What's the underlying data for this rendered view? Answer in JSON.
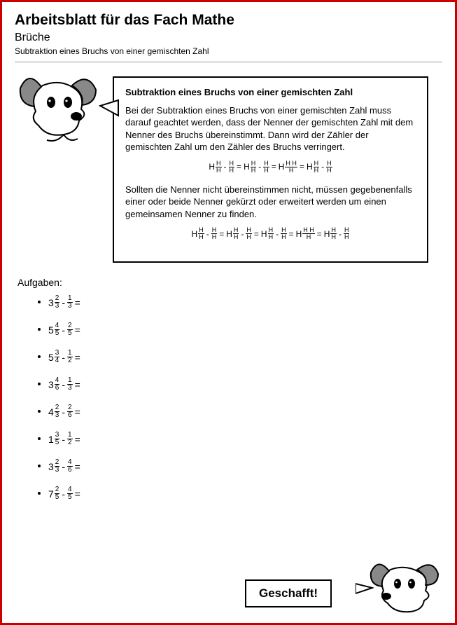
{
  "colors": {
    "border": "#cc0000",
    "bg": "#ffffff",
    "text": "#000000",
    "rule": "#999999"
  },
  "header": {
    "title": "Arbeitsblatt für das Fach Mathe",
    "subtitle": "Brüche",
    "subsub": "Subtraktion eines Bruchs von einer gemischten Zahl"
  },
  "box": {
    "title": "Subtraktion eines Bruchs von einer gemischten Zahl",
    "p1": "Bei der Subtraktion eines Bruchs von einer gemischten Zahl muss darauf geachtet werden, dass der Nenner der gemischten Zahl mit dem Nenner des Bruchs übereinstimmt. Dann wird der Zähler der gemischten Zahl um den Zähler des Bruchs verringert.",
    "eq1": [
      {
        "t": "mix",
        "w": "H",
        "n": "H",
        "d": "H"
      },
      {
        "t": "op",
        "v": "-"
      },
      {
        "t": "frac",
        "n": "H",
        "d": "H"
      },
      {
        "t": "op",
        "v": "="
      },
      {
        "t": "mix",
        "w": "H",
        "n": "H",
        "d": "H"
      },
      {
        "t": "op",
        "v": "-"
      },
      {
        "t": "frac",
        "n": "H",
        "d": "H"
      },
      {
        "t": "op",
        "v": "="
      },
      {
        "t": "mix",
        "w": "H",
        "n": "H H",
        "d": "H"
      },
      {
        "t": "op",
        "v": "="
      },
      {
        "t": "mix",
        "w": "H",
        "n": "H",
        "d": "H"
      },
      {
        "t": "op",
        "v": "-"
      },
      {
        "t": "frac",
        "n": "H",
        "d": "H"
      }
    ],
    "p2": "Sollten die Nenner nicht übereinstimmen nicht, müssen gegebenenfalls einer oder beide Nenner gekürzt oder erweitert werden um einen gemeinsamen Nenner zu finden.",
    "eq2": [
      {
        "t": "mix",
        "w": "H",
        "n": "H",
        "d": "H"
      },
      {
        "t": "op",
        "v": "-"
      },
      {
        "t": "frac",
        "n": "H",
        "d": "H"
      },
      {
        "t": "op",
        "v": "="
      },
      {
        "t": "mix",
        "w": "H",
        "n": "H",
        "d": "H"
      },
      {
        "t": "op",
        "v": "-"
      },
      {
        "t": "frac",
        "n": "H",
        "d": "H"
      },
      {
        "t": "op",
        "v": "="
      },
      {
        "t": "mix",
        "w": "H",
        "n": "H",
        "d": "H"
      },
      {
        "t": "op",
        "v": "-"
      },
      {
        "t": "frac",
        "n": "H",
        "d": "H"
      },
      {
        "t": "op",
        "v": "="
      },
      {
        "t": "mix",
        "w": "H",
        "n": "H H",
        "d": "H"
      },
      {
        "t": "op",
        "v": "="
      },
      {
        "t": "mix",
        "w": "H",
        "n": "H",
        "d": "H"
      },
      {
        "t": "op",
        "v": "-"
      },
      {
        "t": "frac",
        "n": "H",
        "d": "H"
      }
    ]
  },
  "tasks_label": "Aufgaben:",
  "tasks": [
    {
      "w": "3",
      "n": "2",
      "d": "3",
      "sn": "1",
      "sd": "3"
    },
    {
      "w": "5",
      "n": "4",
      "d": "5",
      "sn": "2",
      "sd": "5"
    },
    {
      "w": "5",
      "n": "3",
      "d": "4",
      "sn": "1",
      "sd": "2"
    },
    {
      "w": "3",
      "n": "4",
      "d": "6",
      "sn": "1",
      "sd": "3"
    },
    {
      "w": "4",
      "n": "2",
      "d": "3",
      "sn": "2",
      "sd": "6"
    },
    {
      "w": "1",
      "n": "3",
      "d": "5",
      "sn": "1",
      "sd": "2"
    },
    {
      "w": "3",
      "n": "2",
      "d": "3",
      "sn": "4",
      "sd": "6"
    },
    {
      "w": "7",
      "n": "2",
      "d": "5",
      "sn": "4",
      "sd": "5"
    }
  ],
  "footer": {
    "geschafft": "Geschafft!"
  }
}
